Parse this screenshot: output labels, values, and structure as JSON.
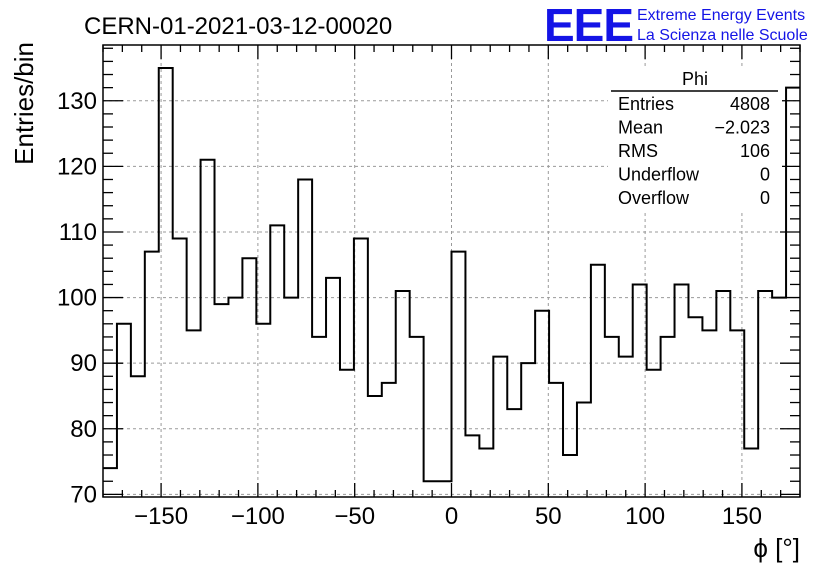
{
  "chart_data": {
    "type": "histogram",
    "title": "CERN-01-2021-03-12-00020",
    "xlabel": "ϕ [°]",
    "ylabel": "Entries/bin",
    "xlim": [
      -180,
      180
    ],
    "ylim": [
      69.6,
      138.5
    ],
    "x_ticks": [
      -150,
      -100,
      -50,
      0,
      50,
      100,
      150
    ],
    "x_tick_labels": [
      "−150",
      "−100",
      "−50",
      "0",
      "50",
      "100",
      "150"
    ],
    "y_ticks": [
      70,
      80,
      90,
      100,
      110,
      120,
      130
    ],
    "y_tick_labels": [
      "70",
      "80",
      "90",
      "100",
      "110",
      "120",
      "130"
    ],
    "grid": true,
    "bin_width": 7.2,
    "values": [
      74,
      96,
      88,
      107,
      135,
      109,
      95,
      121,
      99,
      100,
      106,
      96,
      111,
      100,
      118,
      94,
      103,
      89,
      109,
      85,
      87,
      101,
      94,
      72,
      72,
      107,
      79,
      77,
      91,
      83,
      90,
      98,
      87,
      76,
      84,
      105,
      94,
      91,
      102,
      89,
      94,
      102,
      97,
      95,
      101,
      95,
      77,
      101,
      100,
      132
    ],
    "stats": {
      "title": "Phi",
      "rows": [
        {
          "label": "Entries",
          "value": "4808"
        },
        {
          "label": "Mean",
          "value": "−2.023"
        },
        {
          "label": "RMS",
          "value": "106"
        },
        {
          "label": "Underflow",
          "value": "0"
        },
        {
          "label": "Overflow",
          "value": "0"
        }
      ]
    }
  },
  "logo": {
    "mark": "EEE",
    "line1": "Extreme Energy Events",
    "line2": "La Scienza nelle Scuole",
    "color": "#1414e6"
  }
}
